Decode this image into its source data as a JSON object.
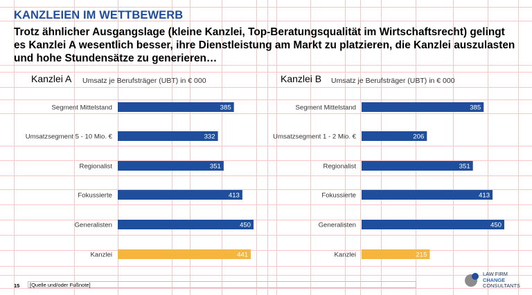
{
  "slide": {
    "kicker": "KANZLEIEN IM WETTBEWERB",
    "headline": "Trotz ähnlicher Ausgangslage (kleine Kanzlei, Top-Beratungsqualität im Wirtschaftsrecht) gelingt es Kanzlei A wesentlich besser, ihre Dienstleistung am Markt zu platzieren, die Kanzlei auszulasten und hohe Stundensätze zu generieren…"
  },
  "footer": {
    "page_number": "15",
    "source_note": "[Quelle und/oder Fußnote]",
    "logo_line1": "LAW FIRM",
    "logo_line2": "CHANGE",
    "logo_line3": "CONSULTANTS"
  },
  "colors": {
    "bar_default": "#1f4e9c",
    "bar_highlight": "#f5b540",
    "kicker": "#1f4e9c"
  },
  "chart_data": [
    {
      "type": "bar",
      "orientation": "horizontal",
      "title": "Kanzlei A",
      "subtitle": "Umsatz je Berufsträger (UBT) in € 000",
      "categories": [
        "Segment Mittelstand",
        "Umsatzsegment 5 - 10 Mio. €",
        "Regionalist",
        "Fokussierte",
        "Generalisten",
        "Kanzlei"
      ],
      "values": [
        385,
        332,
        351,
        413,
        450,
        441
      ],
      "highlight_index": 5,
      "xlim": [
        0,
        450
      ],
      "grid": true,
      "legend": "none"
    },
    {
      "type": "bar",
      "orientation": "horizontal",
      "title": "Kanzlei B",
      "subtitle": "Umsatz je Berufsträger (UBT) in € 000",
      "categories": [
        "Segment Mittelstand",
        "Umsatzsegment 1 - 2 Mio. €",
        "Regionalist",
        "Fokussierte",
        "Generalisten",
        "Kanzlei"
      ],
      "values": [
        385,
        206,
        351,
        413,
        450,
        215
      ],
      "highlight_index": 5,
      "xlim": [
        0,
        450
      ],
      "grid": true,
      "legend": "none"
    }
  ]
}
